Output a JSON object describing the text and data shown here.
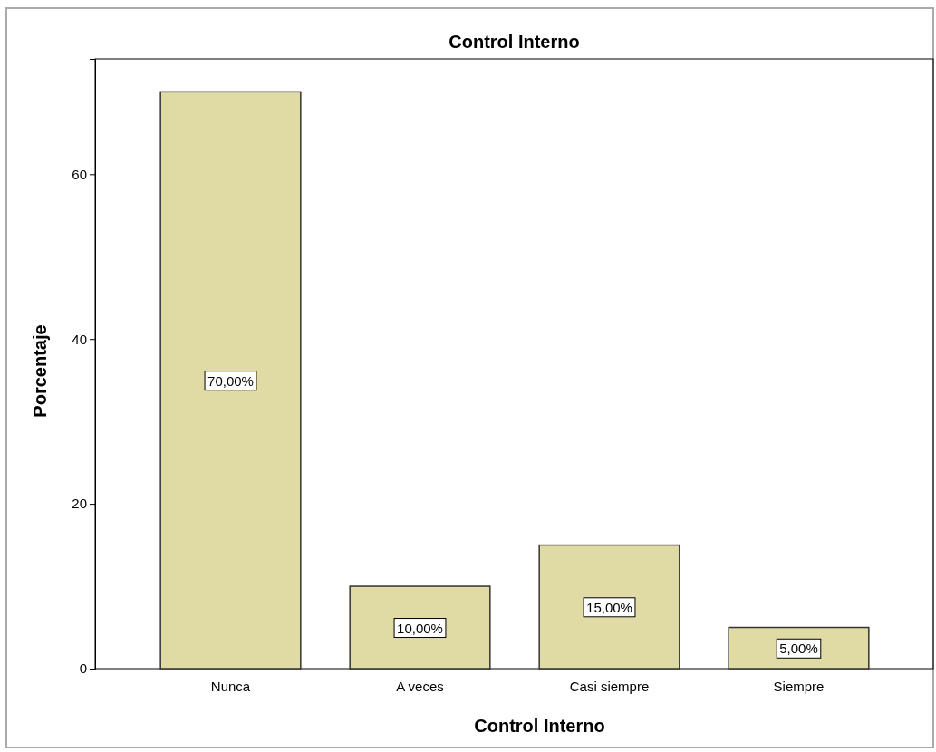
{
  "chart_data": {
    "type": "bar",
    "title": "Control Interno",
    "xlabel": "Control Interno",
    "ylabel": "Porcentaje",
    "categories": [
      "Nunca",
      "A veces",
      "Casi siempre",
      "Siempre"
    ],
    "values": [
      70,
      10,
      15,
      5
    ],
    "value_labels": [
      "70,00%",
      "10,00%",
      "15,00%",
      "5,00%"
    ],
    "color": "#e0dba5",
    "ylim": [
      0,
      74
    ],
    "yticks": [
      0,
      20,
      40,
      60
    ],
    "grid": false
  }
}
